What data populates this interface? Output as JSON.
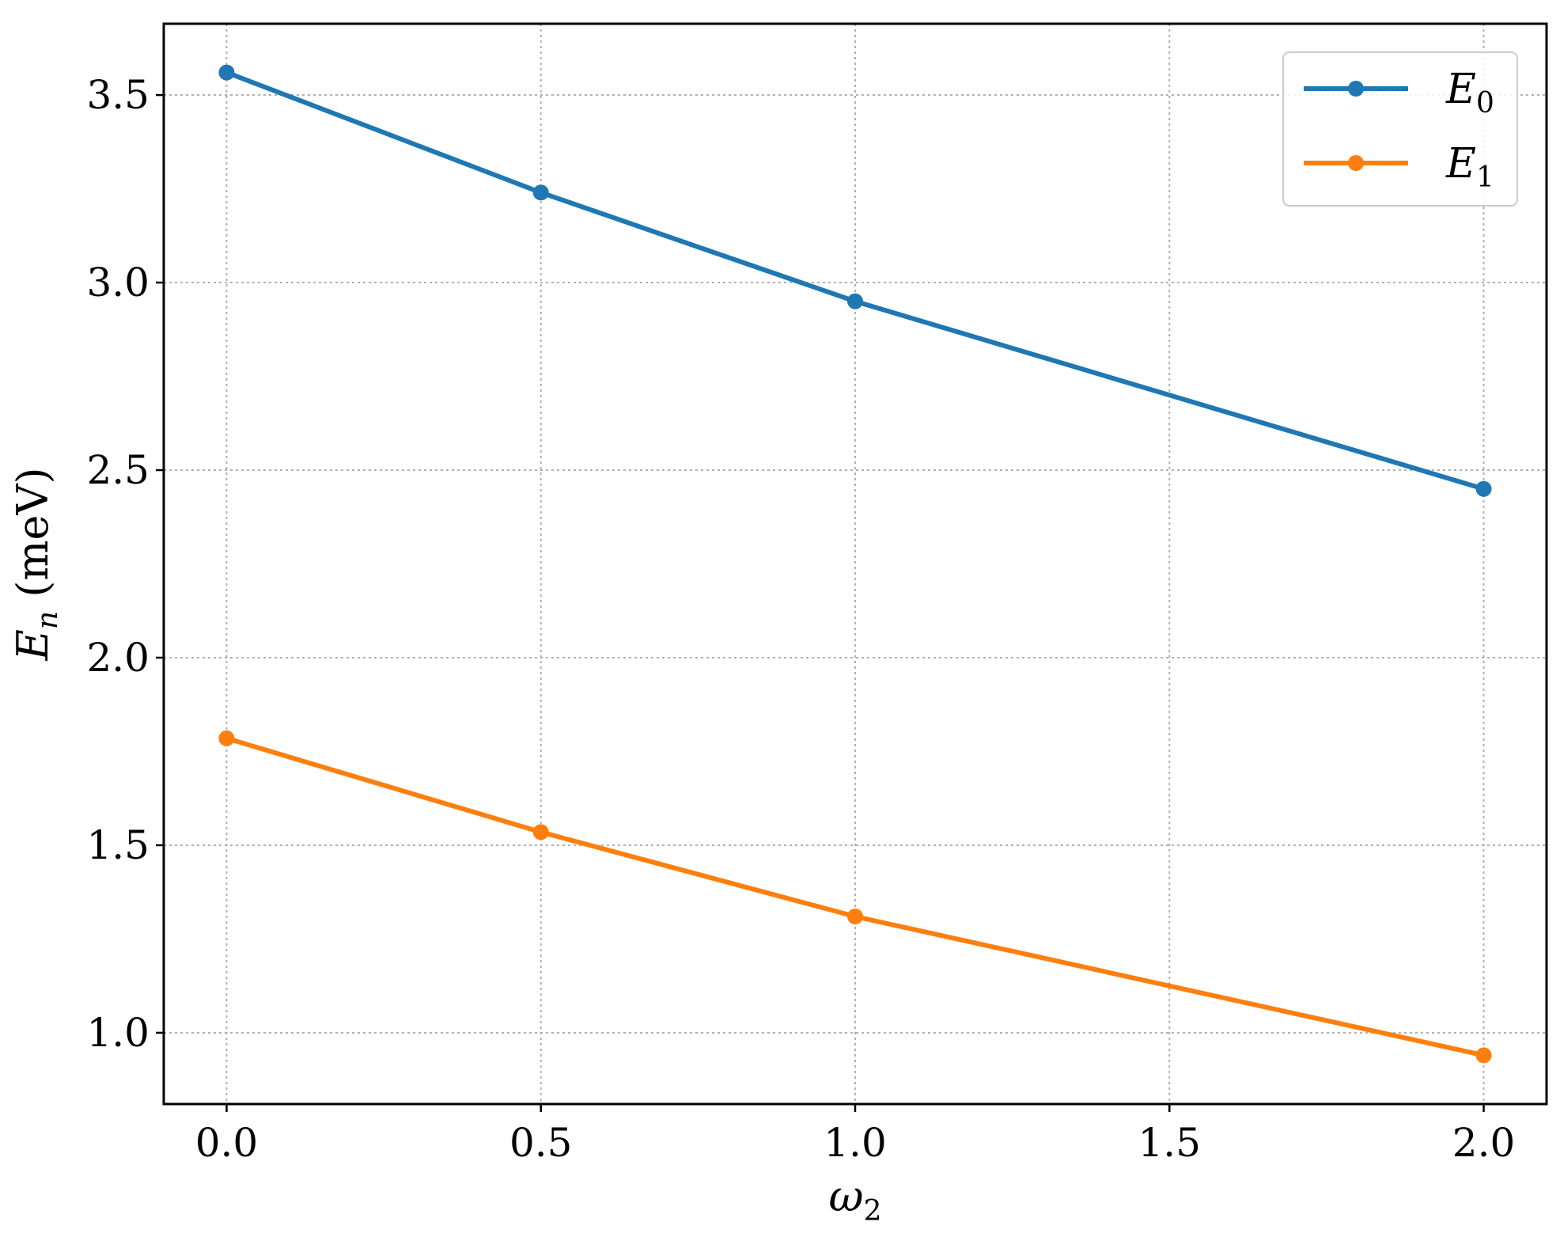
{
  "chart_data": {
    "type": "line",
    "x": [
      0.0,
      0.5,
      1.0,
      2.0
    ],
    "series": [
      {
        "name_base": "E",
        "name_sub": "0",
        "color": "#1f77b4",
        "values": [
          3.56,
          3.24,
          2.95,
          2.45
        ]
      },
      {
        "name_base": "E",
        "name_sub": "1",
        "color": "#ff7f0e",
        "values": [
          1.785,
          1.535,
          1.31,
          0.94
        ]
      }
    ],
    "xlabel_base": "ω",
    "xlabel_sub": "2",
    "ylabel_base": "E",
    "ylabel_sub": "n",
    "ylabel_unit": " (meV)",
    "xlim": [
      -0.1,
      2.1
    ],
    "ylim": [
      0.81,
      3.69
    ],
    "xticks": [
      0.0,
      0.5,
      1.0,
      1.5,
      2.0
    ],
    "xtick_labels": [
      "0.0",
      "0.5",
      "1.0",
      "1.5",
      "2.0"
    ],
    "yticks": [
      1.0,
      1.5,
      2.0,
      2.5,
      3.0,
      3.5
    ],
    "ytick_labels": [
      "1.0",
      "1.5",
      "2.0",
      "2.5",
      "3.0",
      "3.5"
    ],
    "grid": true,
    "legend_position": "top-right"
  }
}
